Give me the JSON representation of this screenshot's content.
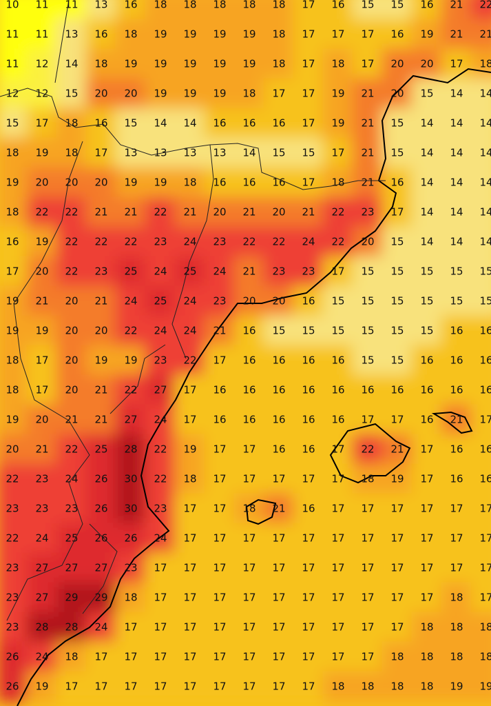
{
  "grid": [
    [
      10,
      11,
      11,
      13,
      16,
      18,
      18,
      18,
      18,
      18,
      17,
      16,
      15,
      15,
      16,
      21,
      22
    ],
    [
      11,
      11,
      13,
      16,
      18,
      19,
      19,
      19,
      19,
      18,
      17,
      17,
      17,
      16,
      19,
      21,
      21
    ],
    [
      11,
      12,
      14,
      18,
      19,
      19,
      19,
      19,
      19,
      18,
      17,
      18,
      17,
      20,
      20,
      17,
      18
    ],
    [
      12,
      12,
      15,
      20,
      20,
      19,
      19,
      19,
      18,
      17,
      17,
      19,
      21,
      20,
      15,
      14,
      14
    ],
    [
      15,
      17,
      18,
      16,
      15,
      14,
      14,
      16,
      16,
      16,
      17,
      19,
      21,
      15,
      14,
      14,
      14
    ],
    [
      18,
      19,
      18,
      17,
      13,
      13,
      13,
      13,
      14,
      15,
      15,
      17,
      21,
      15,
      14,
      14,
      14
    ],
    [
      19,
      20,
      20,
      20,
      19,
      19,
      18,
      16,
      16,
      16,
      17,
      18,
      21,
      16,
      14,
      14,
      14
    ],
    [
      18,
      22,
      22,
      21,
      21,
      22,
      21,
      20,
      21,
      20,
      21,
      22,
      23,
      17,
      14,
      14,
      14
    ],
    [
      16,
      19,
      22,
      22,
      22,
      23,
      24,
      23,
      22,
      22,
      24,
      22,
      20,
      15,
      14,
      14,
      14
    ],
    [
      17,
      20,
      22,
      23,
      25,
      24,
      25,
      24,
      21,
      23,
      23,
      17,
      15,
      15,
      15,
      15,
      15
    ],
    [
      19,
      21,
      20,
      21,
      24,
      25,
      24,
      23,
      20,
      20,
      16,
      15,
      15,
      15,
      15,
      15,
      15
    ],
    [
      19,
      19,
      20,
      20,
      22,
      24,
      24,
      21,
      16,
      15,
      15,
      15,
      15,
      15,
      15,
      16,
      16
    ],
    [
      18,
      17,
      20,
      19,
      19,
      23,
      22,
      17,
      16,
      16,
      16,
      16,
      15,
      15,
      16,
      16,
      16
    ],
    [
      18,
      17,
      20,
      21,
      22,
      27,
      17,
      16,
      16,
      16,
      16,
      16,
      16,
      16,
      16,
      16,
      16
    ],
    [
      19,
      20,
      21,
      21,
      27,
      24,
      17,
      16,
      16,
      16,
      16,
      16,
      17,
      17,
      16,
      21,
      17
    ],
    [
      20,
      21,
      22,
      25,
      28,
      22,
      19,
      17,
      17,
      16,
      16,
      17,
      22,
      21,
      17,
      16,
      16
    ],
    [
      22,
      23,
      24,
      26,
      30,
      22,
      18,
      17,
      17,
      17,
      17,
      17,
      18,
      19,
      17,
      16,
      16
    ],
    [
      23,
      23,
      23,
      26,
      30,
      23,
      17,
      17,
      18,
      21,
      16,
      17,
      17,
      17,
      17,
      17,
      17
    ],
    [
      22,
      24,
      25,
      26,
      26,
      24,
      17,
      17,
      17,
      17,
      17,
      17,
      17,
      17,
      17,
      17,
      17
    ],
    [
      23,
      27,
      27,
      27,
      23,
      17,
      17,
      17,
      17,
      17,
      17,
      17,
      17,
      17,
      17,
      17,
      17
    ],
    [
      23,
      27,
      29,
      29,
      18,
      17,
      17,
      17,
      17,
      17,
      17,
      17,
      17,
      17,
      17,
      18,
      17
    ],
    [
      23,
      28,
      28,
      24,
      17,
      17,
      17,
      17,
      17,
      17,
      17,
      17,
      17,
      17,
      18,
      18,
      18
    ],
    [
      26,
      24,
      18,
      17,
      17,
      17,
      17,
      17,
      17,
      17,
      17,
      17,
      17,
      18,
      18,
      18,
      18
    ],
    [
      26,
      19,
      17,
      17,
      17,
      17,
      17,
      17,
      17,
      17,
      17,
      18,
      18,
      18,
      18,
      19,
      19
    ]
  ]
}
